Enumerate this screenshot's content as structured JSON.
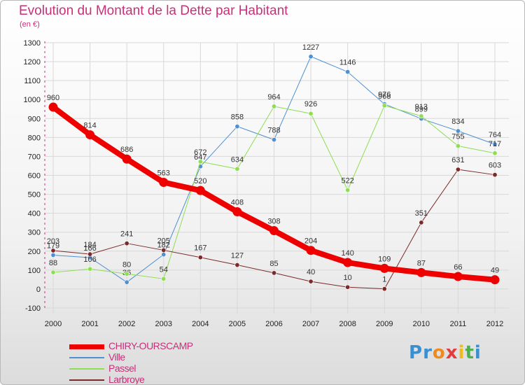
{
  "title": "Evolution du Montant de la Dette par Habitant",
  "subtitle": "(en €)",
  "logo": {
    "text": "Proxiti",
    "colors": [
      "#3a8fd0",
      "#3a8fd0",
      "#f08a1c",
      "#e43b3b",
      "#f2b81c",
      "#4caf50",
      "#3a8fd0"
    ]
  },
  "chart_data": {
    "type": "line",
    "categories": [
      "2000",
      "2001",
      "2002",
      "2003",
      "2004",
      "2005",
      "2006",
      "2007",
      "2008",
      "2009",
      "2010",
      "2011",
      "2012"
    ],
    "ylim": [
      -100,
      1300
    ],
    "yticks": [
      -100,
      0,
      100,
      200,
      300,
      400,
      500,
      600,
      700,
      800,
      900,
      1000,
      1100,
      1200,
      1300
    ],
    "grid": true,
    "legend_position": "bottom-left",
    "series": [
      {
        "name": "CHIRY-OURSCAMP",
        "color": "#ee0000",
        "width": 8,
        "values": [
          960,
          814,
          686,
          563,
          520,
          408,
          308,
          204,
          140,
          109,
          87,
          66,
          49
        ],
        "labels": [
          "960",
          "814",
          "686",
          "563",
          "520",
          "408",
          "308",
          "204",
          "140",
          "109",
          "87",
          "66",
          "49"
        ]
      },
      {
        "name": "Ville",
        "color": "#4f90d0",
        "width": 1,
        "values": [
          179,
          166,
          36,
          182,
          647,
          858,
          788,
          1227,
          1146,
          976,
          899,
          834,
          764
        ],
        "labels": [
          "179",
          "166",
          "36",
          "182",
          "647",
          "858",
          "788",
          "1227",
          "1146",
          "976",
          "899",
          "834",
          "764"
        ]
      },
      {
        "name": "Passel",
        "color": "#8ede52",
        "width": 1,
        "values": [
          88,
          106,
          80,
          54,
          672,
          634,
          964,
          926,
          522,
          968,
          913,
          755,
          717
        ],
        "labels": [
          "88",
          "106",
          "80",
          "54",
          "672",
          "634",
          "964",
          "926",
          "522",
          "968",
          "913",
          "755",
          "717"
        ]
      },
      {
        "name": "Larbroye",
        "color": "#7a2a2a",
        "width": 1,
        "values": [
          203,
          184,
          241,
          205,
          167,
          127,
          85,
          40,
          10,
          1,
          351,
          631,
          603
        ],
        "labels": [
          "203",
          "184",
          "241",
          "205",
          "167",
          "127",
          "85",
          "40",
          "10",
          "1",
          "351",
          "631",
          "603"
        ]
      }
    ]
  }
}
